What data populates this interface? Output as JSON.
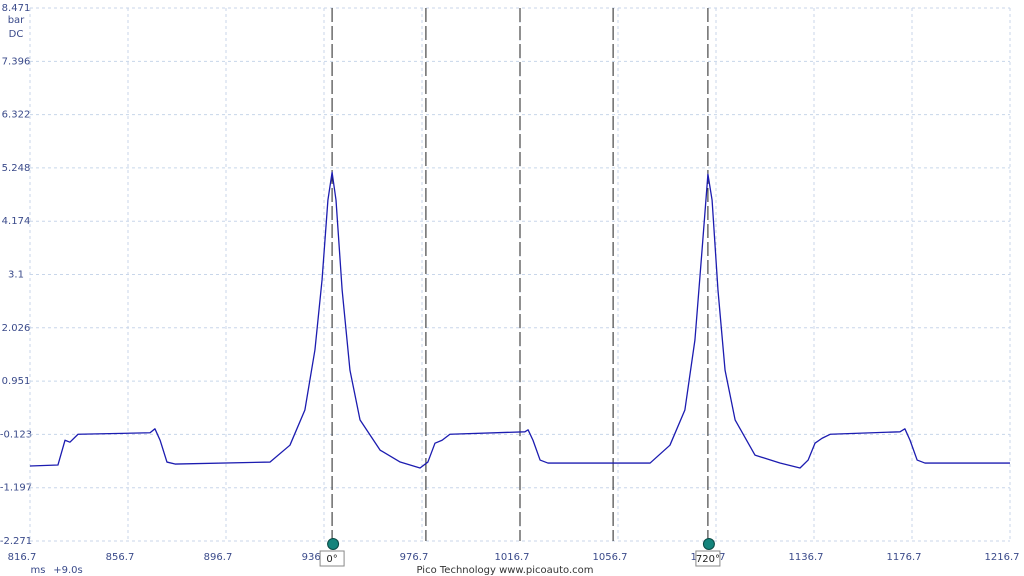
{
  "chart_data": {
    "type": "line",
    "y_unit": "bar",
    "coupling": "DC",
    "x_unit": "ms",
    "x_offset": "+9.0s",
    "footer": "Pico Technology  www.picoauto.com",
    "x": [
      816.7,
      828.1,
      831.0,
      833.0,
      836.3,
      865.7,
      867.7,
      869.8,
      872.6,
      875.9,
      914.7,
      922.8,
      928.9,
      933.0,
      935.9,
      938.3,
      940.0,
      941.6,
      944.1,
      947.3,
      951.4,
      959.6,
      967.8,
      975.9,
      979.1,
      982.0,
      984.9,
      988.1,
      1018.7,
      1020.0,
      1022.0,
      1024.9,
      1028.1,
      1069.8,
      1077.9,
      1084.0,
      1088.1,
      1091.0,
      1093.4,
      1095.1,
      1097.5,
      1100.4,
      1104.5,
      1112.6,
      1122.8,
      1131.0,
      1134.3,
      1137.1,
      1140.0,
      1143.3,
      1171.8,
      1173.8,
      1175.9,
      1178.8,
      1182.0,
      1216.7
    ],
    "series": [
      {
        "color": "#1c1cb0",
        "values": [
          -0.76,
          -0.74,
          -0.24,
          -0.28,
          -0.12,
          -0.09,
          -0.01,
          -0.24,
          -0.68,
          -0.72,
          -0.68,
          -0.34,
          0.37,
          1.58,
          2.99,
          4.6,
          5.16,
          4.6,
          2.79,
          1.17,
          0.17,
          -0.44,
          -0.68,
          -0.8,
          -0.68,
          -0.3,
          -0.24,
          -0.12,
          -0.07,
          -0.03,
          -0.24,
          -0.64,
          -0.7,
          -0.7,
          -0.34,
          0.37,
          1.78,
          3.59,
          5.12,
          4.6,
          2.79,
          1.17,
          0.17,
          -0.54,
          -0.7,
          -0.8,
          -0.64,
          -0.3,
          -0.2,
          -0.12,
          -0.07,
          -0.01,
          -0.24,
          -0.64,
          -0.7,
          -0.7
        ]
      }
    ],
    "xlim": [
      816.7,
      1216.7
    ],
    "xticks": [
      816.7,
      856.7,
      896.7,
      936.7,
      976.7,
      1016.7,
      1056.7,
      1096.7,
      1136.7,
      1176.7,
      1216.7
    ],
    "ylim": [
      -2.271,
      8.471
    ],
    "yticks": [
      8.471,
      7.396,
      6.322,
      5.248,
      4.174,
      3.1,
      2.026,
      0.951,
      -0.123,
      -1.197,
      -2.271
    ],
    "grid": true,
    "rulers": [
      {
        "x": 940.0,
        "label": "0°"
      },
      {
        "x": 978.3
      },
      {
        "x": 1016.7
      },
      {
        "x": 1054.7
      },
      {
        "x": 1093.4,
        "label": "720°"
      }
    ]
  }
}
